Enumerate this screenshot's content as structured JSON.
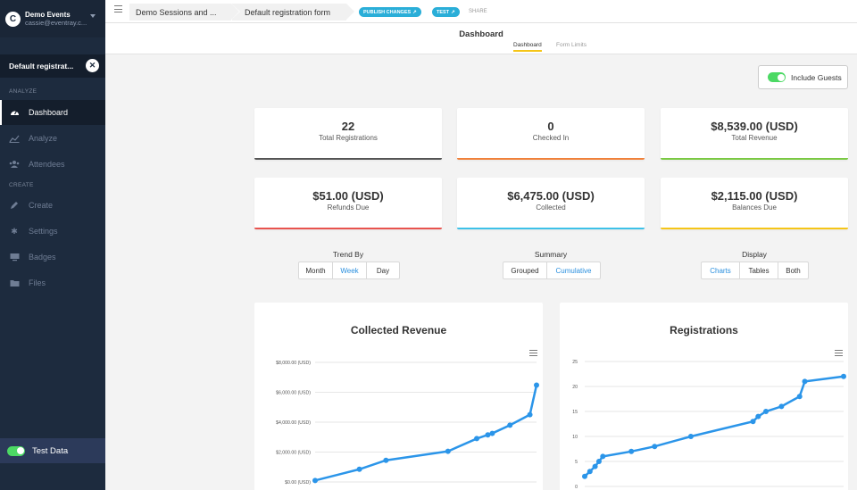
{
  "sidebar": {
    "org": {
      "avatar": "C",
      "name": "Demo Events",
      "email": "cassie@eventray.c...",
      "caret_icon": "chevron-down-icon"
    },
    "form_selector": {
      "label": "Default registrat...",
      "close_icon": "close-icon"
    },
    "sections": {
      "analyze": "ANALYZE",
      "create": "CREATE"
    },
    "items": [
      {
        "id": "dashboard",
        "label": "Dashboard",
        "icon": "dashboard-icon",
        "active": true
      },
      {
        "id": "analyze",
        "label": "Analyze",
        "icon": "line-chart-icon"
      },
      {
        "id": "attendees",
        "label": "Attendees",
        "icon": "users-icon"
      },
      {
        "id": "create",
        "label": "Create",
        "icon": "pencil-icon"
      },
      {
        "id": "settings",
        "label": "Settings",
        "icon": "gear-icon"
      },
      {
        "id": "badges",
        "label": "Badges",
        "icon": "monitor-icon"
      },
      {
        "id": "files",
        "label": "Files",
        "icon": "folder-icon"
      }
    ],
    "test_data": {
      "label": "Test Data",
      "on": true
    }
  },
  "topbar": {
    "breadcrumb": [
      "Demo Sessions and ...",
      "Default registration form"
    ],
    "publish_label": "PUBLISH CHANGES",
    "test_label": "TEST",
    "share_label": "SHARE"
  },
  "header": {
    "title": "Dashboard",
    "tabs": [
      {
        "label": "Dashboard",
        "active": true
      },
      {
        "label": "Form Limits"
      }
    ]
  },
  "include_guests": {
    "label": "Include Guests",
    "on": true
  },
  "cards": [
    {
      "value": "22",
      "label": "Total Registrations",
      "color": "#555555"
    },
    {
      "value": "0",
      "label": "Checked In",
      "color": "#f0813a"
    },
    {
      "value": "$8,539.00 (USD)",
      "label": "Total Revenue",
      "color": "#7ac943"
    },
    {
      "value": "$51.00 (USD)",
      "label": "Refunds Due",
      "color": "#e8534e"
    },
    {
      "value": "$6,475.00 (USD)",
      "label": "Collected",
      "color": "#3ec1e8"
    },
    {
      "value": "$2,115.00 (USD)",
      "label": "Balances Due",
      "color": "#f5c518"
    }
  ],
  "controls": {
    "trend_by": {
      "label": "Trend By",
      "options": [
        "Month",
        "Week",
        "Day"
      ],
      "selected": "Week"
    },
    "summary": {
      "label": "Summary",
      "options": [
        "Grouped",
        "Cumulative"
      ],
      "selected": "Cumulative"
    },
    "display": {
      "label": "Display",
      "options": [
        "Charts",
        "Tables",
        "Both"
      ],
      "selected": "Charts"
    }
  },
  "chart_data": [
    {
      "type": "line",
      "title": "Collected Revenue",
      "y_tick_labels": [
        "$0.00 (USD)",
        "$2,000.00 (USD)",
        "$4,000.00 (USD)",
        "$6,000.00 (USD)",
        "$8,000.00 (USD)"
      ],
      "ylim": [
        0,
        8000
      ],
      "grid": true,
      "color": "#2b95e9",
      "x_fraction": [
        0,
        0.2,
        0.32,
        0.6,
        0.73,
        0.78,
        0.8,
        0.88,
        0.97,
        1.0
      ],
      "values": [
        100,
        850,
        1450,
        2050,
        2900,
        3150,
        3250,
        3800,
        4500,
        6475
      ]
    },
    {
      "type": "line",
      "title": "Registrations",
      "y_tick_labels": [
        "0",
        "5",
        "10",
        "15",
        "20",
        "25"
      ],
      "ylim": [
        0,
        25
      ],
      "grid": true,
      "color": "#2b95e9",
      "x_fraction": [
        0,
        0.02,
        0.04,
        0.055,
        0.07,
        0.18,
        0.27,
        0.41,
        0.65,
        0.67,
        0.7,
        0.76,
        0.83,
        0.85,
        1.0
      ],
      "values": [
        2,
        3,
        4,
        5,
        6,
        7,
        8,
        10,
        13,
        14,
        15,
        16,
        18,
        21,
        22
      ]
    }
  ]
}
